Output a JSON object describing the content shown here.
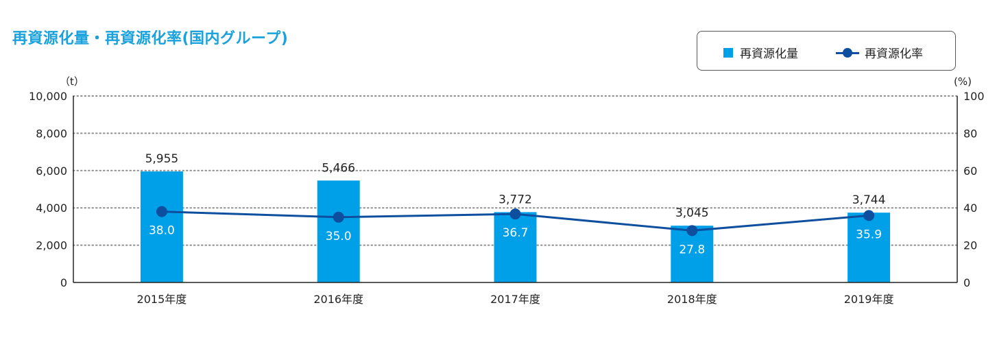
{
  "chart_data": {
    "type": "bar",
    "title": "再資源化量・再資源化率(国内グループ)",
    "categories": [
      "2015年度",
      "2016年度",
      "2017年度",
      "2018年度",
      "2019年度"
    ],
    "series": [
      {
        "name": "再資源化量",
        "type": "bar",
        "axis": "left",
        "color": "#00a0e9",
        "values": [
          5955,
          5466,
          3772,
          3045,
          3744
        ],
        "labels": [
          "5,955",
          "5,466",
          "3,772",
          "3,045",
          "3,744"
        ]
      },
      {
        "name": "再資源化率",
        "type": "line",
        "axis": "right",
        "color": "#0d4f9e",
        "values": [
          38.0,
          35.0,
          36.7,
          27.8,
          35.9
        ],
        "labels": [
          "38.0",
          "35.0",
          "36.7",
          "27.8",
          "35.9"
        ]
      }
    ],
    "y_left": {
      "unit": "（t）",
      "range": [
        0,
        10000
      ],
      "ticks": [
        "0",
        "2,000",
        "4,000",
        "6,000",
        "8,000",
        "10,000"
      ]
    },
    "y_right": {
      "unit": "(%)",
      "range": [
        0,
        100
      ],
      "ticks": [
        "0",
        "20",
        "40",
        "60",
        "80",
        "100"
      ]
    },
    "grid": true,
    "legend_position": "top-right"
  }
}
